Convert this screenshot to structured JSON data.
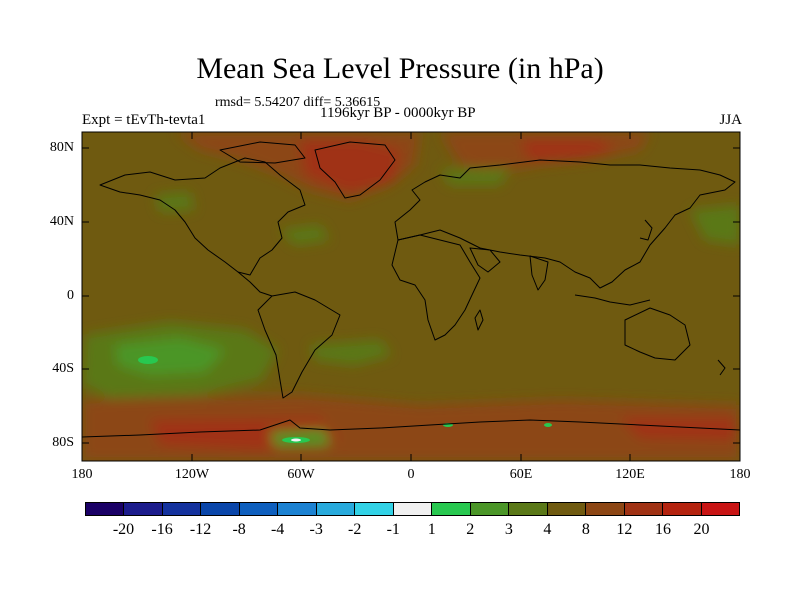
{
  "title": "Mean Sea Level Pressure (in hPa)",
  "stats": "rmsd= 5.54207 diff= 5.36615",
  "experiment": "Expt = tEvTh-tevta1",
  "period": "1196kyr BP - 0000kyr BP",
  "season": "JJA",
  "map": {
    "background_color": "#6f5a10",
    "y_ticks": [
      "80N",
      "40N",
      "0",
      "40S",
      "80S"
    ],
    "x_ticks": [
      "180",
      "120W",
      "60W",
      "0",
      "60E",
      "120E",
      "180"
    ]
  },
  "colorbar": {
    "colors": [
      "#1a0066",
      "#1c1c8c",
      "#14329e",
      "#0a46aa",
      "#0e5fbe",
      "#1c82d2",
      "#28aadc",
      "#32d2e6",
      "#f0f0f0",
      "#28c850",
      "#4b9628",
      "#5a7818",
      "#6f5a10",
      "#8c4614",
      "#a03214",
      "#b4230f",
      "#c81414"
    ],
    "labels": [
      "-20",
      "-16",
      "-12",
      "-8",
      "-4",
      "-3",
      "-2",
      "-1",
      "1",
      "2",
      "3",
      "4",
      "8",
      "12",
      "16",
      "20"
    ]
  }
}
